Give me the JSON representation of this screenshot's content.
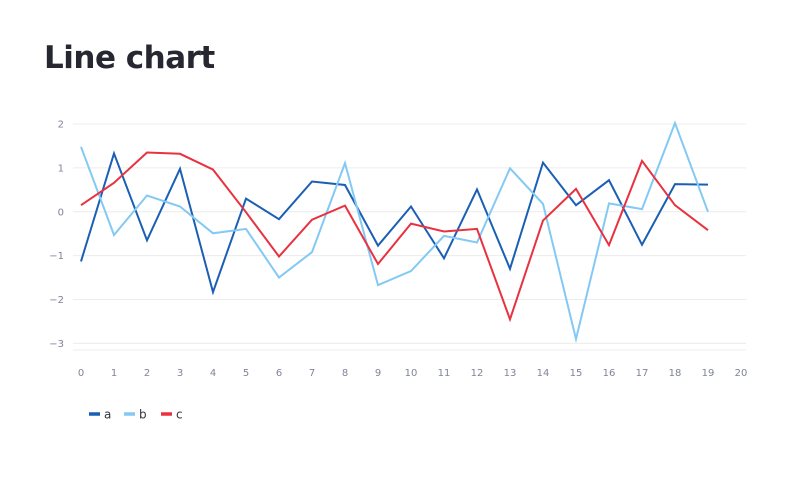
{
  "page": {
    "title": "Line chart"
  },
  "chart_data": {
    "type": "line",
    "title": "",
    "xlabel": "",
    "ylabel": "",
    "x": [
      0,
      1,
      2,
      3,
      4,
      5,
      6,
      7,
      8,
      9,
      10,
      11,
      12,
      13,
      14,
      15,
      16,
      17,
      18,
      19
    ],
    "xlim": [
      0,
      20
    ],
    "ylim": [
      -3.15,
      2
    ],
    "x_ticks": [
      "0",
      "1",
      "2",
      "3",
      "4",
      "5",
      "6",
      "7",
      "8",
      "9",
      "10",
      "11",
      "12",
      "13",
      "14",
      "15",
      "16",
      "17",
      "18",
      "19",
      "20"
    ],
    "y_ticks": [
      "2",
      "1",
      "0",
      "−1",
      "−2",
      "−3"
    ],
    "y_tick_values": [
      2,
      1,
      0,
      -1,
      -2,
      -3
    ],
    "grid": "horizontal",
    "legend": "bottom-left",
    "series": [
      {
        "name": "a",
        "color": "#1a5fb4",
        "values": [
          -1.13,
          1.33,
          -0.65,
          0.98,
          -1.83,
          0.3,
          -0.17,
          0.69,
          0.61,
          -0.77,
          0.12,
          -1.06,
          0.51,
          -1.3,
          1.12,
          0.15,
          0.72,
          -0.75,
          0.63,
          0.62
        ]
      },
      {
        "name": "b",
        "color": "#83c9f4",
        "values": [
          1.48,
          -0.53,
          0.37,
          0.12,
          -0.49,
          -0.39,
          -1.5,
          -0.92,
          1.11,
          -1.67,
          -1.35,
          -0.55,
          -0.7,
          0.99,
          0.18,
          -2.9,
          0.19,
          0.06,
          2.02,
          0.0
        ]
      },
      {
        "name": "c",
        "color": "#e8323f",
        "values": [
          0.15,
          0.66,
          1.35,
          1.32,
          0.96,
          -0.01,
          -1.02,
          -0.18,
          0.14,
          -1.19,
          -0.27,
          -0.45,
          -0.39,
          -2.45,
          -0.2,
          0.52,
          -0.76,
          1.16,
          0.15,
          -0.42
        ]
      }
    ]
  }
}
